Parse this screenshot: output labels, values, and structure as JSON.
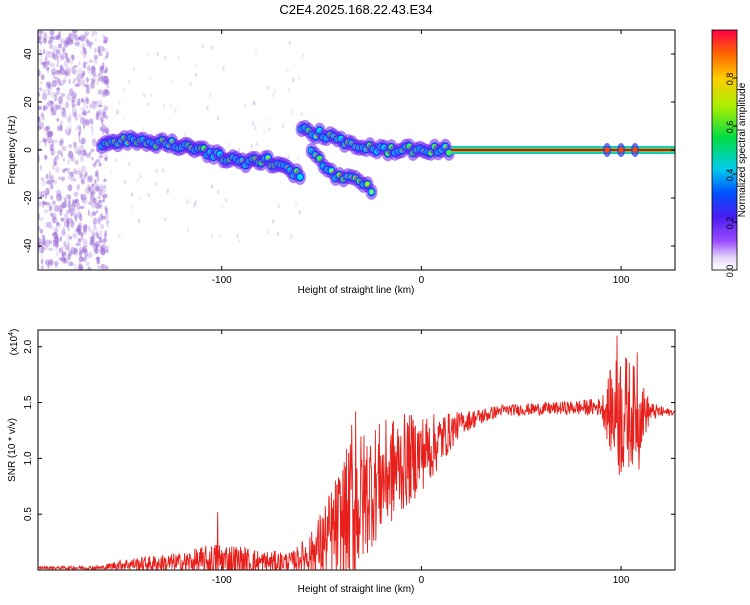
{
  "title": "C2E4.2025.168.22.43.E34",
  "colors": {
    "spectrum_line": "#ff0000",
    "snr_line": "#e8201c",
    "speckle": "#9b6bd6"
  },
  "chart_data": [
    {
      "type": "heatmap",
      "name": "spectrogram",
      "xlabel": "Height of straight line (km)",
      "ylabel": "Frequency (Hz)",
      "xlim": [
        -192,
        127
      ],
      "ylim": [
        -50,
        50
      ],
      "xticks": [
        -100,
        0,
        100
      ],
      "yticks": [
        -40,
        -20,
        0,
        20,
        40
      ],
      "colorbar": {
        "label": "Normalized spectral amplitude",
        "range": [
          0,
          1
        ],
        "ticks": [
          "0.0",
          "0.2",
          "0.4",
          "0.6",
          "0.8"
        ],
        "colormap": "rainbow (white → purple → blue → cyan → green → yellow → orange → red)"
      },
      "main_trace": [
        {
          "x": -160,
          "y": 3
        },
        {
          "x": -145,
          "y": 4
        },
        {
          "x": -130,
          "y": 3
        },
        {
          "x": -115,
          "y": 1
        },
        {
          "x": -100,
          "y": -3
        },
        {
          "x": -88,
          "y": -5
        },
        {
          "x": -78,
          "y": -4
        },
        {
          "x": -68,
          "y": -8
        },
        {
          "x": -60,
          "y": -10
        }
      ],
      "upper_branch": [
        {
          "x": -60,
          "y": 8
        },
        {
          "x": -52,
          "y": 7
        },
        {
          "x": -45,
          "y": 5
        },
        {
          "x": -38,
          "y": 3
        },
        {
          "x": -30,
          "y": 2
        },
        {
          "x": -22,
          "y": 0
        },
        {
          "x": -12,
          "y": 0
        },
        {
          "x": 0,
          "y": 0
        },
        {
          "x": 15,
          "y": 0
        }
      ],
      "lower_branch": [
        {
          "x": -55,
          "y": -1
        },
        {
          "x": -50,
          "y": -5
        },
        {
          "x": -45,
          "y": -10
        },
        {
          "x": -38,
          "y": -12
        },
        {
          "x": -30,
          "y": -13
        },
        {
          "x": -25,
          "y": -17
        }
      ],
      "tone": {
        "x_start": 15,
        "x_end": 127,
        "y": 0
      }
    },
    {
      "type": "line",
      "name": "snr",
      "xlabel": "Height of straight line (km)",
      "ylabel": "SNR (10 * v/v)",
      "scale_label": "(x10",
      "scale_exp": "4",
      "scale_close": ")",
      "xlim": [
        -192,
        127
      ],
      "ylim": [
        0,
        2.15
      ],
      "xticks": [
        -100,
        0,
        100
      ],
      "yticks": [
        "0.5",
        "1.0",
        "1.5",
        "2.0"
      ],
      "envelope": [
        {
          "x": -192,
          "base": 0.02,
          "amp": 0.01
        },
        {
          "x": -160,
          "base": 0.02,
          "amp": 0.02
        },
        {
          "x": -150,
          "base": 0.05,
          "amp": 0.05
        },
        {
          "x": -120,
          "base": 0.06,
          "amp": 0.1
        },
        {
          "x": -100,
          "base": 0.08,
          "amp": 0.18
        },
        {
          "x": -80,
          "base": 0.06,
          "amp": 0.12
        },
        {
          "x": -65,
          "base": 0.08,
          "amp": 0.08
        },
        {
          "x": -55,
          "base": 0.15,
          "amp": 0.2
        },
        {
          "x": -45,
          "base": 0.3,
          "amp": 0.45
        },
        {
          "x": -35,
          "base": 0.5,
          "amp": 0.7
        },
        {
          "x": -25,
          "base": 0.75,
          "amp": 0.55
        },
        {
          "x": -10,
          "base": 0.95,
          "amp": 0.45
        },
        {
          "x": 5,
          "base": 1.1,
          "amp": 0.3
        },
        {
          "x": 20,
          "base": 1.32,
          "amp": 0.1
        },
        {
          "x": 40,
          "base": 1.43,
          "amp": 0.05
        },
        {
          "x": 70,
          "base": 1.45,
          "amp": 0.06
        },
        {
          "x": 90,
          "base": 1.46,
          "amp": 0.08
        },
        {
          "x": 95,
          "base": 1.42,
          "amp": 0.4
        },
        {
          "x": 100,
          "base": 1.4,
          "amp": 0.6
        },
        {
          "x": 108,
          "base": 1.4,
          "amp": 0.4
        },
        {
          "x": 115,
          "base": 1.42,
          "amp": 0.08
        },
        {
          "x": 127,
          "base": 1.41,
          "amp": 0.02
        }
      ],
      "peaks": [
        {
          "x": -102,
          "y": 0.52
        },
        {
          "x": -35,
          "y": 1.3
        },
        {
          "x": -33,
          "y": 1.42
        },
        {
          "x": 98,
          "y": 2.1
        },
        {
          "x": 99,
          "y": 0.85
        },
        {
          "x": 108,
          "y": 1.95
        },
        {
          "x": 109,
          "y": 0.9
        }
      ]
    }
  ]
}
